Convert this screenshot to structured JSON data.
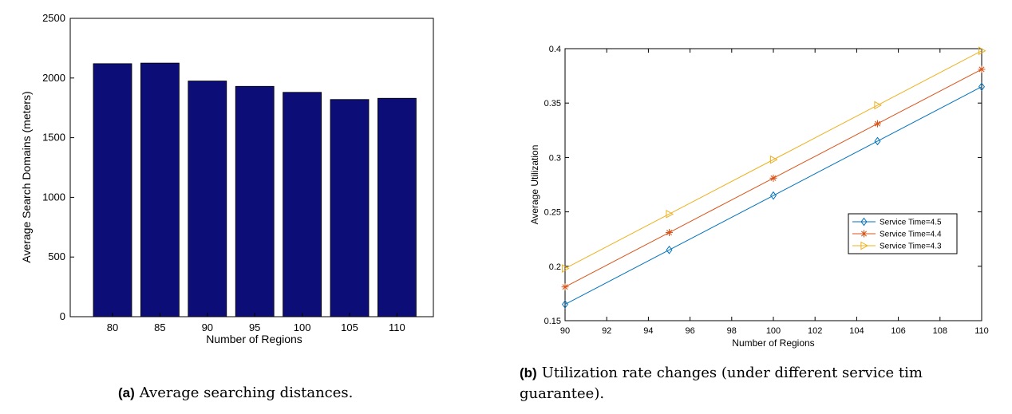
{
  "chart_data": [
    {
      "type": "bar",
      "categories": [
        "80",
        "85",
        "90",
        "95",
        "100",
        "105",
        "110"
      ],
      "values": [
        2120,
        2125,
        1975,
        1930,
        1880,
        1820,
        1830
      ],
      "title": "",
      "xlabel": "Number of Regions",
      "ylabel": "Average Search Domains (meters)",
      "ylim": [
        0,
        2500
      ],
      "yticks": [
        0,
        500,
        1000,
        1500,
        2000,
        2500
      ],
      "bar_color": "#0d0d78",
      "grid": false
    },
    {
      "type": "line",
      "x": [
        90,
        95,
        100,
        105,
        110
      ],
      "xlim": [
        90,
        110
      ],
      "ylim": [
        0.15,
        0.4
      ],
      "xticks": [
        90,
        92,
        94,
        96,
        98,
        100,
        102,
        104,
        106,
        108,
        110
      ],
      "yticks": [
        "0.15",
        "0.2",
        "0.25",
        "0.3",
        "0.35",
        "0.4"
      ],
      "xlabel": "Number of Regions",
      "ylabel": "Average Utilization",
      "legend_position": "right",
      "grid": false,
      "series": [
        {
          "name": "Service Time=4.5",
          "values": [
            0.165,
            0.215,
            0.265,
            0.315,
            0.365
          ],
          "color": "#0072bd",
          "marker": "diamond"
        },
        {
          "name": "Service Time=4.4",
          "values": [
            0.181,
            0.231,
            0.281,
            0.331,
            0.381
          ],
          "color": "#d95319",
          "marker": "asterisk"
        },
        {
          "name": "Service Time=4.3",
          "values": [
            0.198,
            0.248,
            0.298,
            0.348,
            0.398
          ],
          "color": "#edb120",
          "marker": "triangle-right"
        }
      ]
    }
  ],
  "captions": {
    "a_tag": "(a)",
    "a_text": "Average searching distances.",
    "b_tag": "(b)",
    "b_text": "Utilization rate changes (under different service tim guarantee)."
  }
}
